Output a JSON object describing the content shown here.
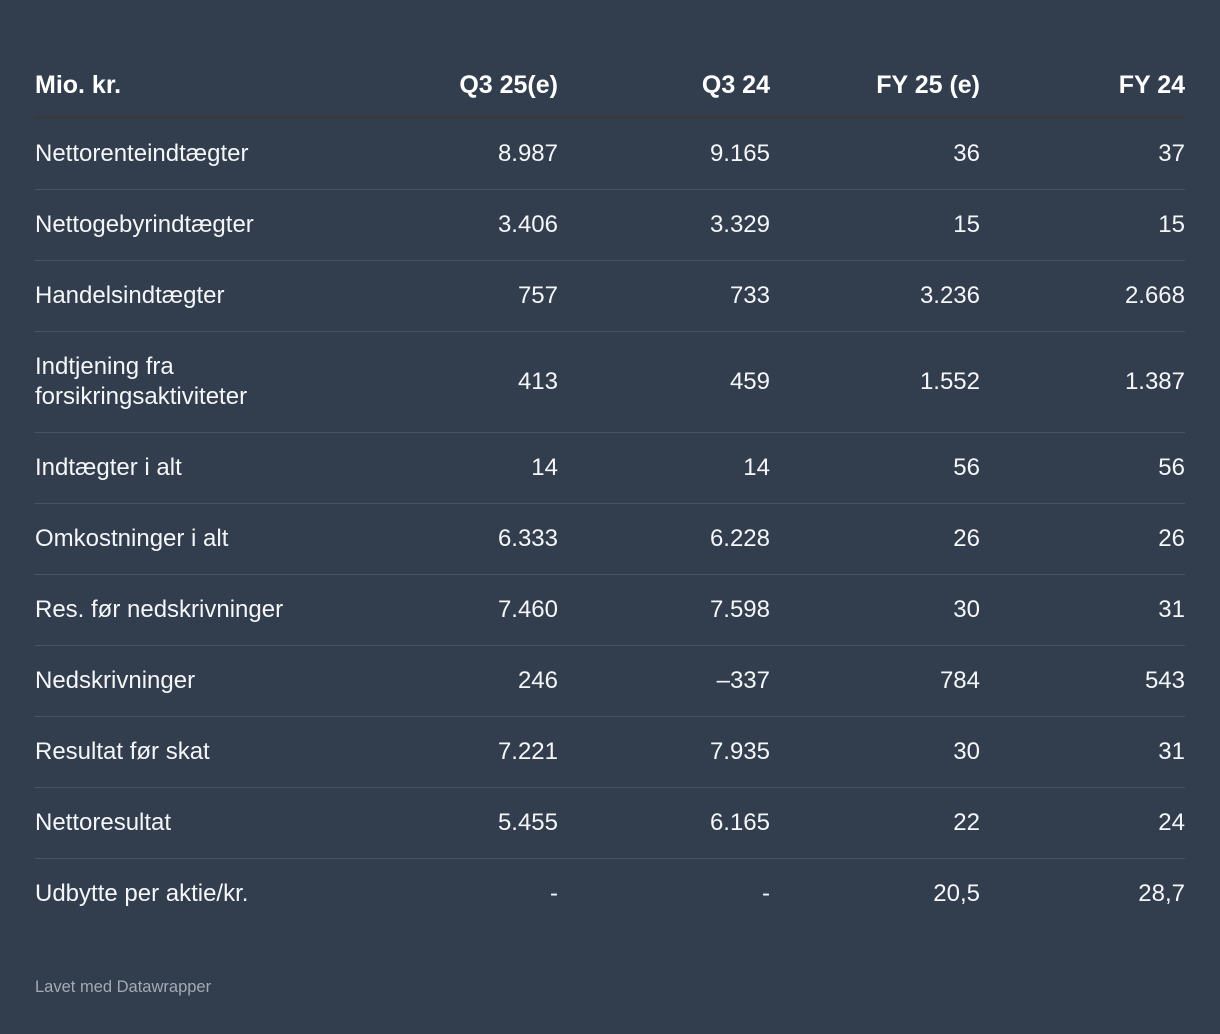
{
  "chart_data": {
    "type": "table",
    "unit_label": "Mio. kr.",
    "columns": [
      "Q3 25(e)",
      "Q3 24",
      "FY 25 (e)",
      "FY 24"
    ],
    "rows": [
      {
        "label": "Nettorenteindtægter",
        "values": [
          "8.987",
          "9.165",
          "36",
          "37"
        ]
      },
      {
        "label": "Nettogebyrindtægter",
        "values": [
          "3.406",
          "3.329",
          "15",
          "15"
        ]
      },
      {
        "label": "Handelsindtægter",
        "values": [
          "757",
          "733",
          "3.236",
          "2.668"
        ]
      },
      {
        "label": "Indtjening fra forsikringsaktiviteter",
        "values": [
          "413",
          "459",
          "1.552",
          "1.387"
        ]
      },
      {
        "label": "Indtægter i alt",
        "values": [
          "14",
          "14",
          "56",
          "56"
        ]
      },
      {
        "label": "Omkostninger i alt",
        "values": [
          "6.333",
          "6.228",
          "26",
          "26"
        ]
      },
      {
        "label": "Res. før nedskrivninger",
        "values": [
          "7.460",
          "7.598",
          "30",
          "31"
        ]
      },
      {
        "label": "Nedskrivninger",
        "values": [
          "246",
          "–337",
          "784",
          "543"
        ]
      },
      {
        "label": "Resultat før skat",
        "values": [
          "7.221",
          "7.935",
          "30",
          "31"
        ]
      },
      {
        "label": "Nettoresultat",
        "values": [
          "5.455",
          "6.165",
          "22",
          "24"
        ]
      },
      {
        "label": "Udbytte per aktie/kr.",
        "values": [
          "-",
          "-",
          "20,5",
          "28,7"
        ]
      }
    ]
  },
  "footer": {
    "attribution": "Lavet med Datawrapper"
  },
  "colors": {
    "background": "#323D4D",
    "header_text": "#FFFFFF",
    "body_text": "#F4F6F8",
    "header_rule": "#36393D",
    "row_divider": "#4A5362",
    "footer_text": "#A3AAB4"
  }
}
